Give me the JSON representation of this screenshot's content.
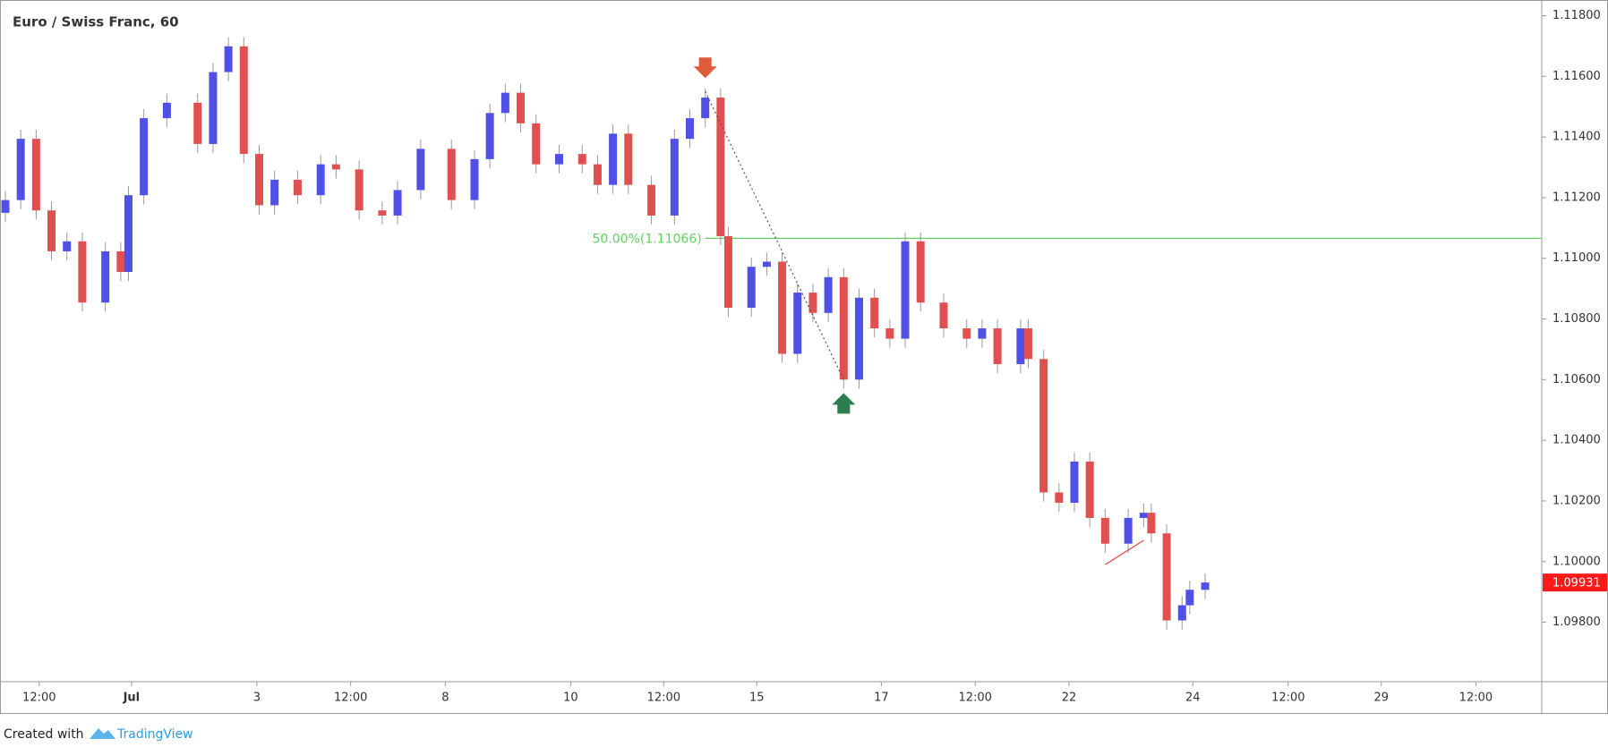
{
  "chart_data": {
    "type": "candlestick",
    "title": "Euro / Swiss Franc, 60",
    "x": [
      0,
      2,
      4,
      6,
      8,
      10,
      13,
      15,
      16,
      18,
      21,
      25,
      27,
      29,
      31,
      33,
      35,
      38,
      41,
      43,
      46,
      49,
      51,
      54,
      58,
      61,
      63,
      65,
      67,
      69,
      72,
      75,
      77,
      79,
      81,
      84,
      87,
      89,
      91,
      93,
      94,
      97,
      99,
      101,
      103,
      105,
      107,
      109,
      111,
      113,
      115,
      117,
      119,
      122,
      125,
      127,
      129,
      132,
      133,
      135,
      137,
      139,
      141,
      143,
      146,
      148,
      149,
      151,
      153,
      154,
      156
    ],
    "open": [
      1.1115,
      1.11192,
      1.11394,
      1.11158,
      1.11023,
      1.11056,
      1.10854,
      1.11023,
      1.10955,
      1.11208,
      1.11462,
      1.11513,
      1.11377,
      1.11614,
      1.11699,
      1.11344,
      1.11175,
      1.11259,
      1.11208,
      1.1131,
      1.11293,
      1.11158,
      1.11141,
      1.11225,
      1.11361,
      1.11192,
      1.11327,
      1.11479,
      1.11546,
      1.11445,
      1.1131,
      1.11344,
      1.1131,
      1.11242,
      1.11411,
      1.11242,
      1.11141,
      1.11394,
      1.11462,
      1.1153,
      1.11073,
      1.10837,
      1.10972,
      1.10989,
      1.10685,
      1.10887,
      1.1082,
      1.10938,
      1.106,
      1.1087,
      1.10769,
      1.10735,
      1.11056,
      1.10854,
      1.10769,
      1.10735,
      1.10769,
      1.10651,
      1.10769,
      1.10668,
      1.10228,
      1.10194,
      1.1033,
      1.10144,
      1.10059,
      1.10144,
      1.10161,
      1.10093,
      1.09806,
      1.09856,
      1.09907
    ],
    "high": [
      1.11222,
      1.11424,
      1.11424,
      1.11188,
      1.11086,
      1.11086,
      1.11053,
      1.11053,
      1.11238,
      1.11492,
      1.11543,
      1.11543,
      1.11644,
      1.11729,
      1.11729,
      1.11374,
      1.11289,
      1.11289,
      1.1134,
      1.1134,
      1.11323,
      1.11188,
      1.11255,
      1.11391,
      1.11391,
      1.11357,
      1.11509,
      1.11576,
      1.11576,
      1.11475,
      1.11374,
      1.11374,
      1.1134,
      1.11441,
      1.11441,
      1.11272,
      1.11424,
      1.11492,
      1.1156,
      1.1156,
      1.11103,
      1.11002,
      1.11019,
      1.11019,
      1.10917,
      1.10917,
      1.10968,
      1.10968,
      1.109,
      1.109,
      1.10799,
      1.11086,
      1.11086,
      1.10884,
      1.10799,
      1.10799,
      1.10799,
      1.10799,
      1.10799,
      1.10698,
      1.10258,
      1.1036,
      1.1036,
      1.10174,
      1.10174,
      1.10191,
      1.10191,
      1.10123,
      1.09886,
      1.09937,
      1.09961
    ],
    "low": [
      1.1112,
      1.11162,
      1.11128,
      1.10993,
      1.10993,
      1.10824,
      1.10824,
      1.10925,
      1.10925,
      1.11178,
      1.11432,
      1.11347,
      1.11347,
      1.11584,
      1.11314,
      1.11145,
      1.11145,
      1.11178,
      1.11178,
      1.11263,
      1.11128,
      1.11111,
      1.11111,
      1.11195,
      1.11162,
      1.11162,
      1.11297,
      1.11449,
      1.11415,
      1.1128,
      1.1128,
      1.1128,
      1.11212,
      1.11212,
      1.11212,
      1.11111,
      1.11111,
      1.11364,
      1.11432,
      1.11043,
      1.10807,
      1.10807,
      1.10942,
      1.10655,
      1.10655,
      1.1079,
      1.1079,
      1.1057,
      1.1057,
      1.10739,
      1.10705,
      1.10705,
      1.10824,
      1.10739,
      1.10705,
      1.10705,
      1.10621,
      1.10621,
      1.10638,
      1.10198,
      1.10164,
      1.10164,
      1.10114,
      1.10029,
      1.10029,
      1.10114,
      1.10063,
      1.09776,
      1.09776,
      1.09826,
      1.09877
    ],
    "close": [
      1.11192,
      1.11394,
      1.11158,
      1.11023,
      1.11056,
      1.10854,
      1.11023,
      1.10955,
      1.11208,
      1.11462,
      1.11513,
      1.11377,
      1.11614,
      1.11699,
      1.11344,
      1.11175,
      1.11259,
      1.11208,
      1.1131,
      1.11293,
      1.11158,
      1.11141,
      1.11225,
      1.11361,
      1.11192,
      1.11327,
      1.11479,
      1.11546,
      1.11445,
      1.1131,
      1.11344,
      1.1131,
      1.11242,
      1.11411,
      1.11242,
      1.11141,
      1.11394,
      1.11462,
      1.1153,
      1.11073,
      1.10837,
      1.10972,
      1.10989,
      1.10685,
      1.10887,
      1.1082,
      1.10938,
      1.106,
      1.1087,
      1.10769,
      1.10735,
      1.11056,
      1.10854,
      1.10769,
      1.10735,
      1.10769,
      1.10651,
      1.10769,
      1.10668,
      1.10228,
      1.10194,
      1.1033,
      1.10144,
      1.10059,
      1.10144,
      1.10161,
      1.10093,
      1.09806,
      1.09856,
      1.09907,
      1.09931
    ],
    "up_color": "#5050e6",
    "down_color": "#e05050",
    "wick_color": "#9a9a9a",
    "xlim": [
      0,
      200
    ],
    "xticks": [
      {
        "value": 4.4,
        "label": "12:00"
      },
      {
        "value": 16.4,
        "label": "Jul"
      },
      {
        "value": 32.7,
        "label": "3"
      },
      {
        "value": 44.9,
        "label": "12:00"
      },
      {
        "value": 57.2,
        "label": "8"
      },
      {
        "value": 73.5,
        "label": "10"
      },
      {
        "value": 85.6,
        "label": "12:00"
      },
      {
        "value": 97.7,
        "label": "15"
      },
      {
        "value": 113.9,
        "label": "17"
      },
      {
        "value": 126.1,
        "label": "12:00"
      },
      {
        "value": 138.3,
        "label": "22"
      },
      {
        "value": 154.4,
        "label": "24"
      },
      {
        "value": 166.8,
        "label": "12:00"
      },
      {
        "value": 178.9,
        "label": "29"
      },
      {
        "value": 191.2,
        "label": "12:00"
      }
    ],
    "ylim": [
      1.09604,
      1.11834
    ],
    "yticks": [
      {
        "value": 1.098,
        "label": "1.09800"
      },
      {
        "value": 1.1,
        "label": "1.10000"
      },
      {
        "value": 1.102,
        "label": "1.10200"
      },
      {
        "value": 1.104,
        "label": "1.10400"
      },
      {
        "value": 1.106,
        "label": "1.10600"
      },
      {
        "value": 1.108,
        "label": "1.10800"
      },
      {
        "value": 1.11,
        "label": "1.11000"
      },
      {
        "value": 1.112,
        "label": "1.11200"
      },
      {
        "value": 1.114,
        "label": "1.11400"
      },
      {
        "value": 1.116,
        "label": "1.11600"
      },
      {
        "value": 1.118,
        "label": "1.11800"
      }
    ],
    "fib_level": {
      "value": 1.11066,
      "label": "50.00%(1.11066)",
      "color": "#5fd35f"
    },
    "fib_line": {
      "x": [
        91,
        109
      ],
      "y": [
        1.1155,
        1.106
      ]
    },
    "fib_start_marker_color": "#e05a3c",
    "fib_end_marker_color": "#2e7d4f",
    "trendline": {
      "x": [
        143,
        148
      ],
      "y": [
        1.0999,
        1.1007
      ],
      "color": "#e05050"
    },
    "last_price": {
      "value": 1.09931,
      "label": "1.09931",
      "color": "#ff1a1a"
    },
    "footer": {
      "prefix": "Created with",
      "brand": "TradingView"
    }
  }
}
